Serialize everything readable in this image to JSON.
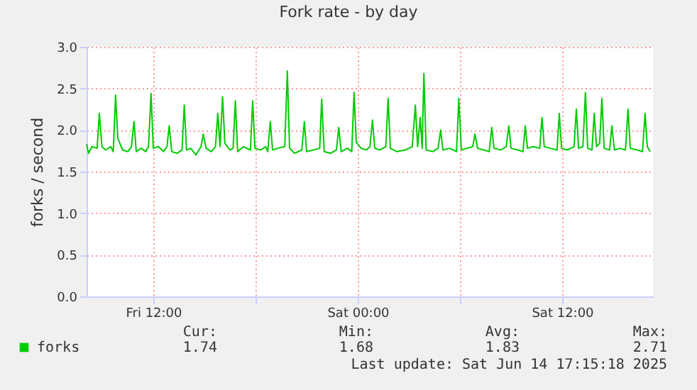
{
  "chart_data": {
    "type": "line",
    "title": "Fork rate - by day",
    "ylabel": "forks / second",
    "xlim": [
      "2025-06-13T08:05",
      "2025-06-14T17:20"
    ],
    "ylim": [
      0,
      3
    ],
    "xticks": [
      {
        "value": "2025-06-13T12:00",
        "label": "Fri 12:00"
      },
      {
        "value": "2025-06-13T18:00",
        "label": null
      },
      {
        "value": "2025-06-14T00:00",
        "label": "Sat 00:00"
      },
      {
        "value": "2025-06-14T06:00",
        "label": null
      },
      {
        "value": "2025-06-14T12:00",
        "label": "Sat 12:00"
      }
    ],
    "yticks": [
      {
        "value": 0,
        "label": "0.0"
      },
      {
        "value": 0.5,
        "label": "0.5"
      },
      {
        "value": 1,
        "label": "1.0"
      },
      {
        "value": 1.5,
        "label": "1.5"
      },
      {
        "value": 2,
        "label": "2.0"
      },
      {
        "value": 2.5,
        "label": "2.5"
      },
      {
        "value": 3,
        "label": "3.0"
      }
    ],
    "grid": true,
    "legend": "bottom left",
    "line_style": "solid",
    "marker": "none",
    "x": [
      "2025-06-13T08:05",
      "2025-06-13T08:12",
      "2025-06-13T08:24",
      "2025-06-13T08:42",
      "2025-06-13T08:50",
      "2025-06-13T08:59",
      "2025-06-13T09:12",
      "2025-06-13T09:30",
      "2025-06-13T09:39",
      "2025-06-13T09:47",
      "2025-06-13T09:55",
      "2025-06-13T10:12",
      "2025-06-13T10:30",
      "2025-06-13T10:43",
      "2025-06-13T10:52",
      "2025-06-13T11:00",
      "2025-06-13T11:18",
      "2025-06-13T11:33",
      "2025-06-13T11:43",
      "2025-06-13T11:52",
      "2025-06-13T12:00",
      "2025-06-13T12:18",
      "2025-06-13T12:36",
      "2025-06-13T12:48",
      "2025-06-13T12:56",
      "2025-06-13T13:05",
      "2025-06-13T13:24",
      "2025-06-13T13:41",
      "2025-06-13T13:49",
      "2025-06-13T13:57",
      "2025-06-13T14:12",
      "2025-06-13T14:30",
      "2025-06-13T14:48",
      "2025-06-13T14:56",
      "2025-06-13T15:06",
      "2025-06-13T15:24",
      "2025-06-13T15:39",
      "2025-06-13T15:47",
      "2025-06-13T15:55",
      "2025-06-13T16:04",
      "2025-06-13T16:12",
      "2025-06-13T16:30",
      "2025-06-13T16:41",
      "2025-06-13T16:49",
      "2025-06-13T16:57",
      "2025-06-13T17:18",
      "2025-06-13T17:42",
      "2025-06-13T17:50",
      "2025-06-13T17:58",
      "2025-06-13T18:18",
      "2025-06-13T18:36",
      "2025-06-13T18:43",
      "2025-06-13T18:52",
      "2025-06-13T19:00",
      "2025-06-13T19:18",
      "2025-06-13T19:43",
      "2025-06-13T19:52",
      "2025-06-13T20:00",
      "2025-06-13T20:18",
      "2025-06-13T20:43",
      "2025-06-13T20:52",
      "2025-06-13T21:00",
      "2025-06-13T21:24",
      "2025-06-13T21:46",
      "2025-06-13T21:53",
      "2025-06-13T22:02",
      "2025-06-13T22:24",
      "2025-06-13T22:45",
      "2025-06-13T22:53",
      "2025-06-13T23:02",
      "2025-06-13T23:24",
      "2025-06-13T23:39",
      "2025-06-13T23:47",
      "2025-06-13T23:55",
      "2025-06-14T00:12",
      "2025-06-14T00:30",
      "2025-06-14T00:43",
      "2025-06-14T00:52",
      "2025-06-14T01:00",
      "2025-06-14T01:18",
      "2025-06-14T01:39",
      "2025-06-14T01:47",
      "2025-06-14T01:55",
      "2025-06-14T02:18",
      "2025-06-14T02:48",
      "2025-06-14T03:12",
      "2025-06-14T03:23",
      "2025-06-14T03:31",
      "2025-06-14T03:40",
      "2025-06-14T03:47",
      "2025-06-14T03:53",
      "2025-06-14T04:01",
      "2025-06-14T04:24",
      "2025-06-14T04:43",
      "2025-06-14T04:52",
      "2025-06-14T05:00",
      "2025-06-14T05:24",
      "2025-06-14T05:48",
      "2025-06-14T05:56",
      "2025-06-14T06:05",
      "2025-06-14T06:24",
      "2025-06-14T06:45",
      "2025-06-14T06:53",
      "2025-06-14T07:02",
      "2025-06-14T07:24",
      "2025-06-14T07:43",
      "2025-06-14T07:52",
      "2025-06-14T08:00",
      "2025-06-14T08:24",
      "2025-06-14T08:43",
      "2025-06-14T08:52",
      "2025-06-14T09:00",
      "2025-06-14T09:24",
      "2025-06-14T09:42",
      "2025-06-14T09:50",
      "2025-06-14T09:58",
      "2025-06-14T10:18",
      "2025-06-14T10:41",
      "2025-06-14T10:49",
      "2025-06-14T10:57",
      "2025-06-14T11:18",
      "2025-06-14T11:42",
      "2025-06-14T11:50",
      "2025-06-14T11:58",
      "2025-06-14T12:18",
      "2025-06-14T12:42",
      "2025-06-14T12:50",
      "2025-06-14T12:58",
      "2025-06-14T13:13",
      "2025-06-14T13:22",
      "2025-06-14T13:30",
      "2025-06-14T13:45",
      "2025-06-14T13:53",
      "2025-06-14T14:01",
      "2025-06-14T14:12",
      "2025-06-14T14:20",
      "2025-06-14T14:28",
      "2025-06-14T14:47",
      "2025-06-14T14:55",
      "2025-06-14T15:04",
      "2025-06-14T15:24",
      "2025-06-14T15:43",
      "2025-06-14T15:52",
      "2025-06-14T16:00",
      "2025-06-14T16:24",
      "2025-06-14T16:43",
      "2025-06-14T16:52",
      "2025-06-14T17:00",
      "2025-06-14T17:10"
    ],
    "series": [
      {
        "name": "forks",
        "color": "#00cc00",
        "values": [
          1.83,
          1.72,
          1.8,
          1.78,
          2.2,
          1.8,
          1.76,
          1.8,
          1.74,
          2.42,
          1.9,
          1.76,
          1.74,
          1.8,
          2.1,
          1.74,
          1.78,
          1.74,
          1.8,
          2.44,
          1.78,
          1.8,
          1.74,
          1.8,
          2.05,
          1.74,
          1.72,
          1.76,
          2.3,
          1.76,
          1.78,
          1.7,
          1.8,
          1.95,
          1.78,
          1.74,
          1.8,
          2.2,
          1.8,
          2.4,
          1.84,
          1.76,
          1.78,
          2.35,
          1.74,
          1.8,
          1.76,
          2.35,
          1.78,
          1.76,
          1.8,
          1.74,
          2.1,
          1.76,
          1.78,
          1.8,
          2.71,
          1.78,
          1.72,
          1.76,
          2.1,
          1.74,
          1.76,
          1.78,
          2.37,
          1.74,
          1.72,
          1.76,
          2.03,
          1.74,
          1.78,
          1.74,
          2.45,
          1.85,
          1.78,
          1.76,
          1.8,
          2.12,
          1.78,
          1.76,
          1.8,
          2.38,
          1.78,
          1.74,
          1.76,
          1.8,
          2.3,
          1.8,
          2.15,
          1.78,
          2.68,
          1.76,
          1.74,
          1.78,
          2.0,
          1.76,
          1.78,
          1.74,
          2.38,
          1.76,
          1.78,
          1.8,
          1.95,
          1.78,
          1.76,
          1.74,
          2.03,
          1.78,
          1.76,
          1.8,
          2.05,
          1.78,
          1.76,
          1.74,
          2.05,
          1.78,
          1.8,
          1.78,
          2.15,
          1.8,
          1.78,
          1.76,
          2.2,
          1.78,
          1.76,
          1.8,
          2.25,
          1.78,
          1.8,
          2.45,
          1.78,
          1.76,
          2.2,
          1.8,
          1.84,
          2.38,
          1.78,
          1.76,
          2.05,
          1.76,
          1.78,
          1.76,
          2.25,
          1.78,
          1.76,
          1.74,
          2.2,
          1.8,
          1.74
        ]
      }
    ],
    "annotations": [
      "Cur:",
      "Min:",
      "Avg:",
      "Max:",
      "1.74",
      "1.68",
      "1.83",
      "2.71",
      "Last update: Sat Jun 14 17:15:18 2025"
    ]
  }
}
